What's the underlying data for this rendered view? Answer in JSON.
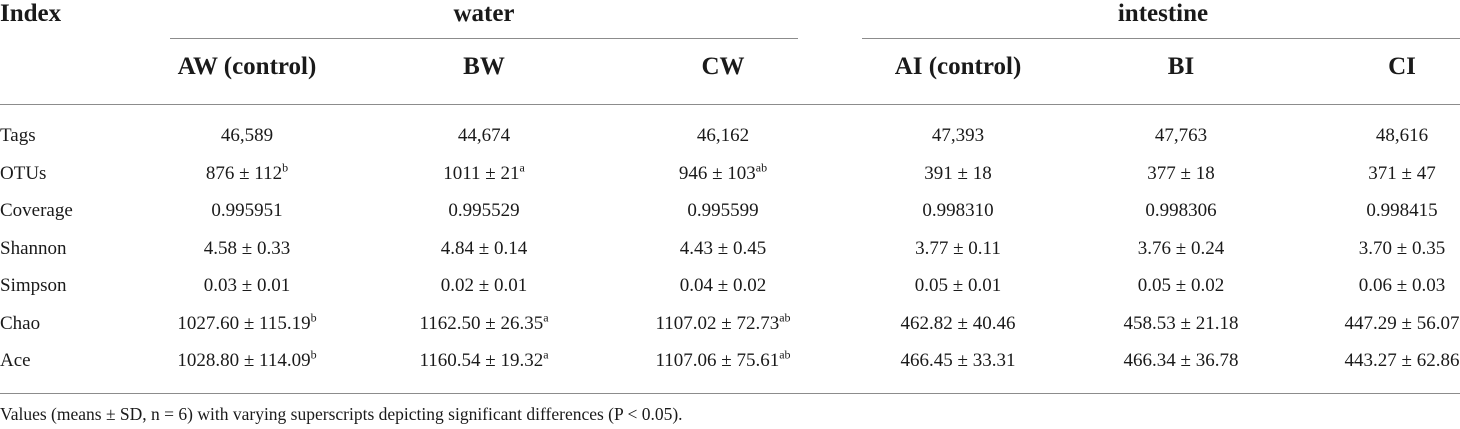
{
  "table": {
    "index_header": "Index",
    "groups": [
      {
        "label": "water"
      },
      {
        "label": "intestine"
      }
    ],
    "columns": [
      "AW (control)",
      "BW",
      "CW",
      "AI (control)",
      "BI",
      "CI"
    ],
    "rows": [
      {
        "label": "Tags",
        "cells": [
          {
            "v": "46,589",
            "s": ""
          },
          {
            "v": "44,674",
            "s": ""
          },
          {
            "v": "46,162",
            "s": ""
          },
          {
            "v": "47,393",
            "s": ""
          },
          {
            "v": "47,763",
            "s": ""
          },
          {
            "v": "48,616",
            "s": ""
          }
        ]
      },
      {
        "label": "OTUs",
        "cells": [
          {
            "v": "876 ± 112",
            "s": "b"
          },
          {
            "v": "1011 ± 21",
            "s": "a"
          },
          {
            "v": "946 ± 103",
            "s": "ab"
          },
          {
            "v": "391 ± 18",
            "s": ""
          },
          {
            "v": "377 ± 18",
            "s": ""
          },
          {
            "v": "371 ± 47",
            "s": ""
          }
        ]
      },
      {
        "label": "Coverage",
        "cells": [
          {
            "v": "0.995951",
            "s": ""
          },
          {
            "v": "0.995529",
            "s": ""
          },
          {
            "v": "0.995599",
            "s": ""
          },
          {
            "v": "0.998310",
            "s": ""
          },
          {
            "v": "0.998306",
            "s": ""
          },
          {
            "v": "0.998415",
            "s": ""
          }
        ]
      },
      {
        "label": "Shannon",
        "cells": [
          {
            "v": "4.58 ± 0.33",
            "s": ""
          },
          {
            "v": "4.84 ± 0.14",
            "s": ""
          },
          {
            "v": "4.43 ± 0.45",
            "s": ""
          },
          {
            "v": "3.77 ± 0.11",
            "s": ""
          },
          {
            "v": "3.76 ± 0.24",
            "s": ""
          },
          {
            "v": "3.70 ± 0.35",
            "s": ""
          }
        ]
      },
      {
        "label": "Simpson",
        "cells": [
          {
            "v": "0.03 ± 0.01",
            "s": ""
          },
          {
            "v": "0.02 ± 0.01",
            "s": ""
          },
          {
            "v": "0.04 ± 0.02",
            "s": ""
          },
          {
            "v": "0.05 ± 0.01",
            "s": ""
          },
          {
            "v": "0.05 ± 0.02",
            "s": ""
          },
          {
            "v": "0.06 ± 0.03",
            "s": ""
          }
        ]
      },
      {
        "label": "Chao",
        "cells": [
          {
            "v": "1027.60 ± 115.19",
            "s": "b"
          },
          {
            "v": "1162.50 ± 26.35",
            "s": "a"
          },
          {
            "v": "1107.02 ± 72.73",
            "s": "ab"
          },
          {
            "v": "462.82 ± 40.46",
            "s": ""
          },
          {
            "v": "458.53 ± 21.18",
            "s": ""
          },
          {
            "v": "447.29 ± 56.07",
            "s": ""
          }
        ]
      },
      {
        "label": "Ace",
        "cells": [
          {
            "v": "1028.80 ± 114.09",
            "s": "b"
          },
          {
            "v": "1160.54 ± 19.32",
            "s": "a"
          },
          {
            "v": "1107.06 ± 75.61",
            "s": "ab"
          },
          {
            "v": "466.45 ± 33.31",
            "s": ""
          },
          {
            "v": "466.34 ± 36.78",
            "s": ""
          },
          {
            "v": "443.27 ± 62.86",
            "s": ""
          }
        ]
      }
    ],
    "footnote": "Values (means ± SD, n = 6) with varying superscripts depicting significant differences (P < 0.05)."
  }
}
